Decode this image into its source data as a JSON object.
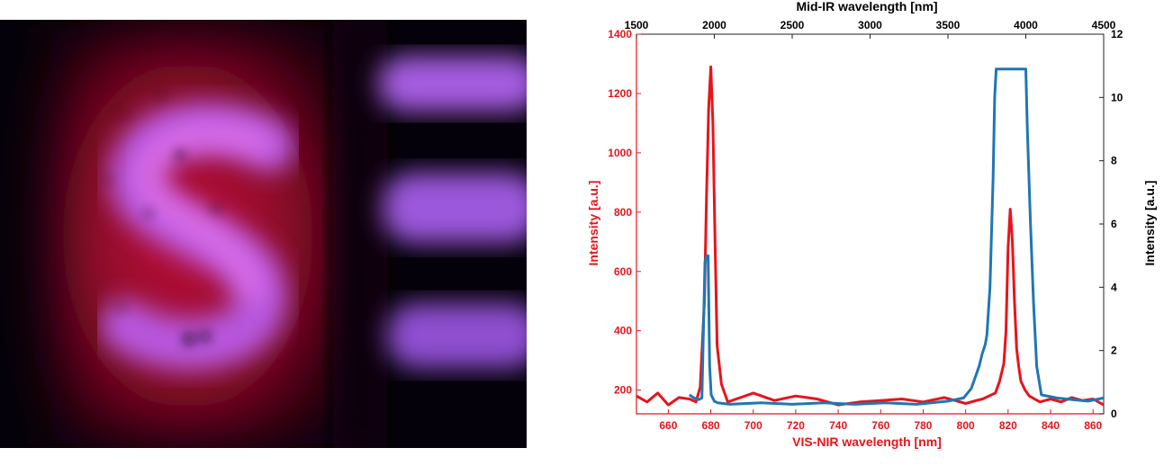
{
  "figure": {
    "panel_left": "fluorescence-micrograph",
    "panel_right": "dual-axis-spectrum"
  },
  "chart_data": {
    "type": "line",
    "xlabel": "VIS-NIR wavelength [nm]",
    "x2label": "Mid-IR wavelength [nm]",
    "ylabel": "Intensity [a.u.]",
    "y2label": "Intensity [a.u.]",
    "xlim": [
      645,
      865
    ],
    "x2lim": [
      1500,
      4500
    ],
    "ylim": [
      120,
      1400
    ],
    "y2lim": [
      0,
      12
    ],
    "xticks": [
      660,
      680,
      700,
      720,
      740,
      760,
      780,
      800,
      820,
      840,
      860
    ],
    "x2ticks": [
      1500,
      2000,
      2500,
      3000,
      3500,
      4000,
      4500
    ],
    "yticks": [
      200,
      400,
      600,
      800,
      1000,
      1200,
      1400
    ],
    "y2ticks": [
      0,
      2,
      4,
      6,
      8,
      10,
      12
    ],
    "grid": false,
    "colors": {
      "vis": "#e8141b",
      "ir": "#1f77b4",
      "left_axis": "#e8141b",
      "right_axis": "#000000"
    },
    "series": [
      {
        "axis": "left-bottom",
        "color": "#e8141b",
        "x": [
          645,
          650,
          655,
          660,
          665,
          670,
          673,
          675,
          677,
          678,
          679,
          680,
          681,
          682,
          683,
          685,
          688,
          692,
          700,
          710,
          720,
          730,
          740,
          750,
          760,
          770,
          780,
          790,
          800,
          805,
          808,
          811,
          814,
          816,
          818,
          819,
          820,
          821,
          822,
          823,
          824,
          825,
          826,
          828,
          830,
          835,
          840,
          845,
          850,
          855,
          860,
          865
        ],
        "y": [
          180,
          160,
          190,
          150,
          175,
          170,
          160,
          210,
          500,
          850,
          1150,
          1290,
          1100,
          700,
          350,
          220,
          160,
          170,
          190,
          165,
          180,
          170,
          150,
          160,
          165,
          170,
          160,
          175,
          155,
          165,
          170,
          180,
          190,
          230,
          290,
          400,
          680,
          810,
          700,
          500,
          340,
          280,
          230,
          200,
          180,
          160,
          170,
          160,
          175,
          165,
          170,
          150
        ]
      },
      {
        "axis": "right-top",
        "color": "#1f77b4",
        "x": [
          1840,
          1870,
          1900,
          1920,
          1940,
          1950,
          1960,
          1970,
          1980,
          2000,
          2020,
          2100,
          2300,
          2500,
          2700,
          2900,
          3100,
          3300,
          3500,
          3600,
          3650,
          3700,
          3720,
          3740,
          3750,
          3770,
          3790,
          3800,
          3810,
          3820,
          3990,
          4000,
          4010,
          4030,
          4050,
          4070,
          4100,
          4200,
          4300,
          4400,
          4500
        ],
        "y": [
          0.6,
          0.5,
          0.45,
          0.5,
          4.8,
          5.0,
          5.0,
          1.5,
          0.6,
          0.4,
          0.35,
          0.3,
          0.35,
          0.3,
          0.35,
          0.3,
          0.35,
          0.3,
          0.4,
          0.5,
          0.8,
          1.5,
          1.9,
          2.2,
          2.5,
          4.0,
          7.5,
          10.0,
          10.9,
          10.9,
          10.9,
          10.9,
          9.0,
          6.0,
          3.5,
          1.5,
          0.6,
          0.5,
          0.45,
          0.4,
          0.5
        ]
      }
    ]
  }
}
